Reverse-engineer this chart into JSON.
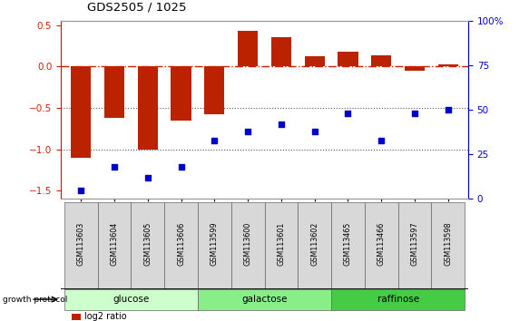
{
  "title": "GDS2505 / 1025",
  "samples": [
    "GSM113603",
    "GSM113604",
    "GSM113605",
    "GSM113606",
    "GSM113599",
    "GSM113600",
    "GSM113601",
    "GSM113602",
    "GSM113465",
    "GSM113466",
    "GSM113597",
    "GSM113598"
  ],
  "log2_ratio": [
    -1.1,
    -0.62,
    -1.0,
    -0.65,
    -0.58,
    0.43,
    0.35,
    0.12,
    0.18,
    0.13,
    -0.05,
    0.02
  ],
  "percentile": [
    5,
    18,
    12,
    18,
    33,
    38,
    42,
    38,
    48,
    33,
    48,
    50
  ],
  "groups": [
    {
      "name": "glucose",
      "start": 0,
      "end": 4,
      "color": "#ccffcc"
    },
    {
      "name": "galactose",
      "start": 4,
      "end": 8,
      "color": "#88ee88"
    },
    {
      "name": "raffinose",
      "start": 8,
      "end": 12,
      "color": "#44cc44"
    }
  ],
  "bar_color": "#bb2200",
  "dot_color": "#0000cc",
  "ylim_left": [
    -1.6,
    0.55
  ],
  "ylim_right": [
    0,
    100
  ],
  "hline_color": "#cc2200",
  "dotline_color": "#555555",
  "background_color": "#ffffff"
}
